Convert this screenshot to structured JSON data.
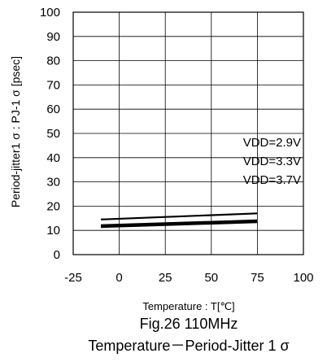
{
  "chart_data": {
    "type": "line",
    "title": "",
    "xlabel": "Temperature : T[℃]",
    "ylabel": "Period-jitter1 σ : PJ-1 σ [psec]",
    "xlim": [
      -25,
      100
    ],
    "ylim": [
      0,
      100
    ],
    "xticks": [
      "-25",
      "0",
      "25",
      "50",
      "75",
      "100"
    ],
    "yticks": [
      "0",
      "10",
      "20",
      "30",
      "40",
      "50",
      "60",
      "70",
      "80",
      "90",
      "100"
    ],
    "grid": true,
    "legend_labels": [
      "VDD=2.9V",
      "VDD=3.3V",
      "VDD=3.7V"
    ],
    "series": [
      {
        "name": "VDD=2.9V",
        "x": [
          -10,
          75
        ],
        "y": [
          14.5,
          17.0
        ]
      },
      {
        "name": "VDD=3.3V",
        "x": [
          -10,
          75
        ],
        "y": [
          12.0,
          14.0
        ]
      },
      {
        "name": "VDD=3.7V",
        "x": [
          -10,
          75
        ],
        "y": [
          11.5,
          13.5
        ]
      }
    ],
    "caption_line1": "Fig.26 110MHz",
    "caption_line2": "Temperature－Period-Jitter 1 σ"
  }
}
